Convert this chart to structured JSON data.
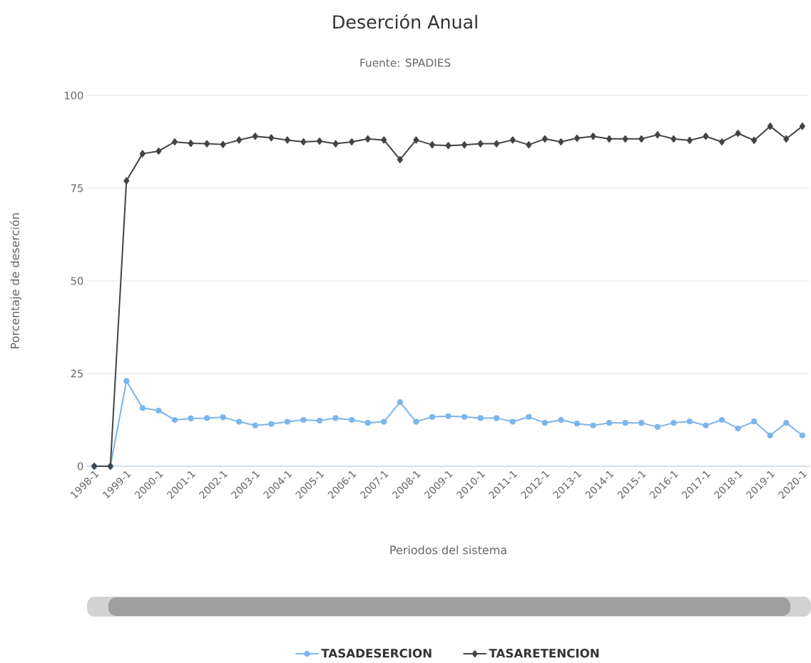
{
  "chart_data": {
    "type": "line",
    "title": "Deserción Anual",
    "subtitle": "Fuente: SPADIES",
    "xlabel": "Periodos del sistema",
    "ylabel": "Porcentaje de deserción",
    "categories": [
      "1998-1",
      null,
      "1999-1",
      null,
      "2000-1",
      null,
      "2001-1",
      null,
      "2002-1",
      null,
      "2003-1",
      null,
      "2004-1",
      null,
      "2005-1",
      null,
      "2006-1",
      null,
      "2007-1",
      null,
      "2008-1",
      null,
      "2009-1",
      null,
      "2010-1",
      null,
      "2011-1",
      null,
      "2012-1",
      null,
      "2013-1",
      null,
      "2014-1",
      null,
      "2015-1",
      null,
      "2016-1",
      null,
      "2017-1",
      null,
      "2018-1",
      null,
      "2019-1",
      null,
      "2020-1"
    ],
    "series": [
      {
        "name": "TASADESERCION",
        "color": "#7cb5ec",
        "marker": "circle",
        "values": [
          0,
          0,
          23,
          15.7,
          15,
          12.5,
          12.9,
          13,
          13.2,
          12,
          11,
          11.4,
          12,
          12.5,
          12.3,
          13,
          12.5,
          11.7,
          12,
          17.3,
          12,
          13.3,
          13.5,
          13.3,
          13,
          13,
          12,
          13.3,
          11.7,
          12.5,
          11.5,
          11,
          11.7,
          11.7,
          11.7,
          10.6,
          11.7,
          12.1,
          11,
          12.5,
          10.2,
          12.1,
          8.3,
          11.7,
          8.3
        ]
      },
      {
        "name": "TASARETENCION",
        "color": "#434348",
        "marker": "diamond",
        "values": [
          0,
          0,
          77,
          84.3,
          85,
          87.5,
          87.1,
          87,
          86.8,
          88,
          89,
          88.6,
          88,
          87.5,
          87.7,
          87,
          87.5,
          88.3,
          88,
          82.7,
          88,
          86.7,
          86.5,
          86.7,
          87,
          87,
          88,
          86.7,
          88.3,
          87.5,
          88.5,
          89,
          88.3,
          88.3,
          88.3,
          89.4,
          88.3,
          87.9,
          89,
          87.5,
          89.8,
          87.9,
          91.7,
          88.3,
          91.7
        ]
      }
    ],
    "ylim": [
      0,
      100
    ],
    "yticks": [
      0,
      25,
      50,
      75,
      100
    ],
    "grid": "y",
    "legend": "bottom"
  }
}
